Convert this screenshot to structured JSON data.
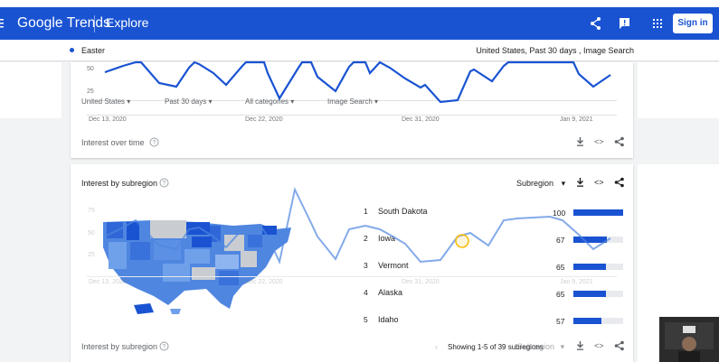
{
  "header": {
    "logo": "Google Trends",
    "section": "Explore",
    "signin_label": "Sign in",
    "accent": "#1a53d2"
  },
  "subbar": {
    "term": "Easter",
    "summary": "United States, Past 30 days , Image Search"
  },
  "filters": {
    "region": "United States",
    "period": "Past 30 days",
    "category": "All categories",
    "search_type": "Image Search"
  },
  "over_time": {
    "title": "Interest over time",
    "y_ticks": [
      "50",
      "25"
    ],
    "x_ticks": [
      "Dec 13, 2020",
      "Dec 22, 2020",
      "Dec 31, 2020",
      "Jan 9, 2021"
    ]
  },
  "subregion": {
    "title": "Interest by subregion",
    "dropdown_label": "Subregion",
    "items": [
      {
        "rank": "1",
        "name": "South Dakota",
        "value": "100",
        "fraction": 1.0
      },
      {
        "rank": "2",
        "name": "Iowa",
        "value": "67",
        "fraction": 0.67
      },
      {
        "rank": "3",
        "name": "Vermont",
        "value": "65",
        "fraction": 0.65
      },
      {
        "rank": "4",
        "name": "Alaska",
        "value": "65",
        "fraction": 0.65
      },
      {
        "rank": "5",
        "name": "Idaho",
        "value": "57",
        "fraction": 0.57
      }
    ],
    "footer_title": "Interest by subregion",
    "footer_paging": "Showing 1-5 of 39 subregions",
    "footer_dropdown": "Subregion"
  },
  "ghost_axis": {
    "y_ticks": [
      "75",
      "50",
      "25"
    ],
    "x_ticks": [
      "Dec 13, 2020",
      "Dec 22, 2020",
      "Dec 31, 2020",
      "Jan 9, 2021"
    ]
  },
  "icons": [
    "menu-icon",
    "share-icon",
    "feedback-icon",
    "apps-icon",
    "help-icon",
    "download-icon",
    "embed-icon",
    "chevron-left-icon",
    "dropdown-arrow-icon"
  ]
}
